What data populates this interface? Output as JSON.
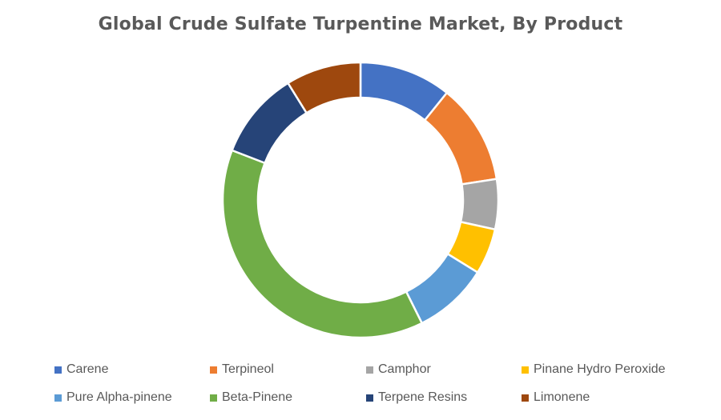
{
  "chart_data": {
    "type": "pie",
    "style": "donut",
    "title": "Global Crude Sulfate Turpentine Market, By Product",
    "legend_position": "bottom",
    "categories": [
      "Carene",
      "Terpineol",
      "Camphor",
      "Pinane Hydro Peroxide",
      "Pure Alpha-pinene",
      "Beta-Pinene",
      "Terpene Resins",
      "Limonene"
    ],
    "values": [
      11,
      12,
      6,
      5.5,
      9,
      39,
      10.5,
      9
    ],
    "colors": [
      "#4472C4",
      "#ED7D31",
      "#A5A5A5",
      "#FFC000",
      "#5B9BD5",
      "#70AD47",
      "#264478",
      "#9E480E"
    ]
  }
}
